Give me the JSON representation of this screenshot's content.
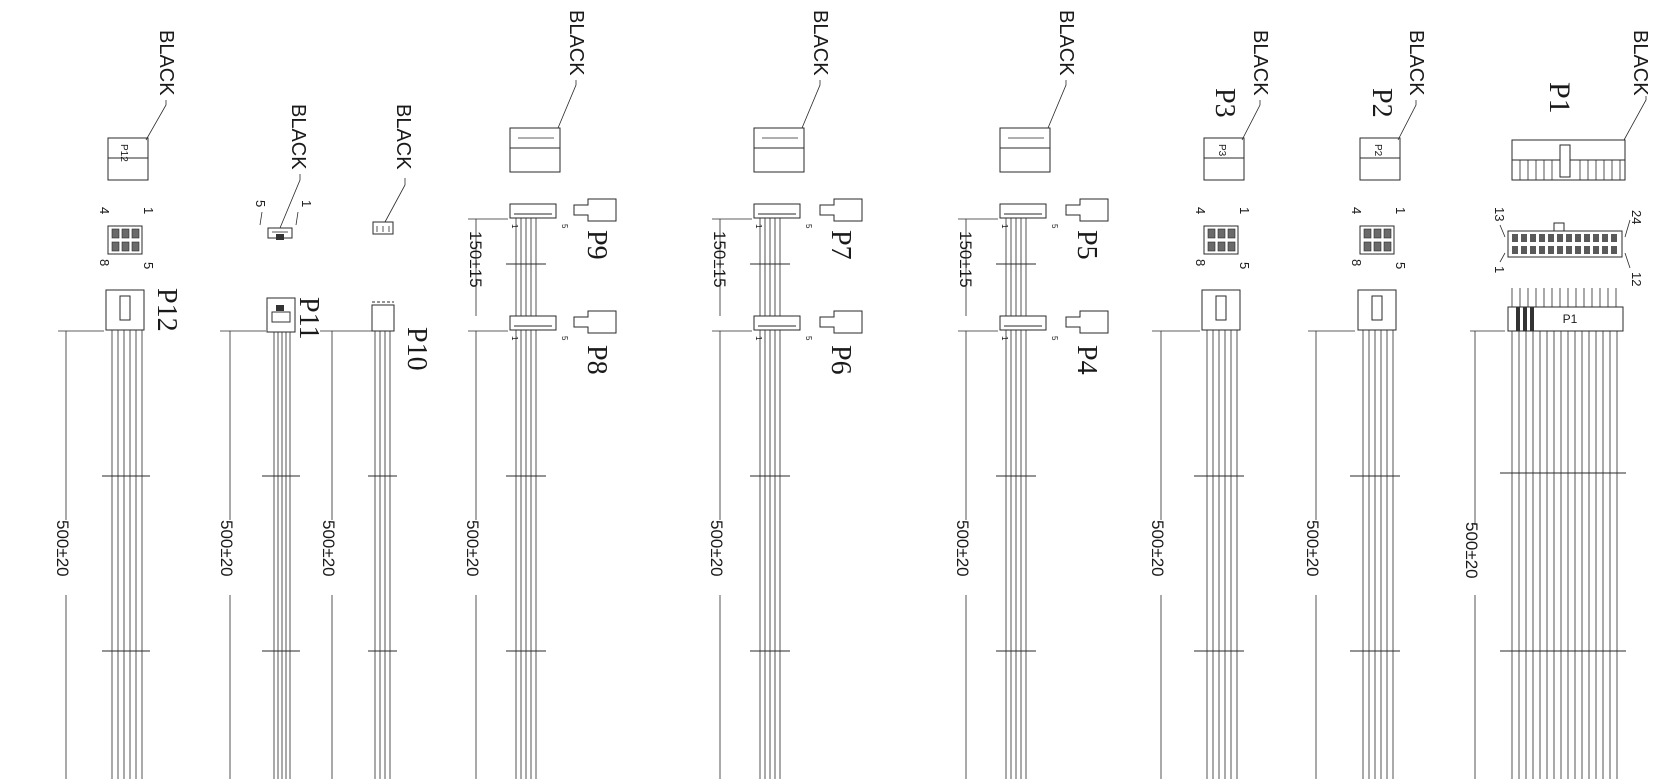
{
  "connectors": {
    "p1": {
      "label": "P1",
      "color": "BLACK",
      "pins": {
        "a": "24",
        "b": "13",
        "c": "1",
        "d": "12"
      },
      "body_label": "P1",
      "length": "500±20"
    },
    "p2": {
      "label": "P2",
      "color": "BLACK",
      "pins": {
        "a": "4",
        "b": "1",
        "c": "8",
        "d": "5"
      },
      "face_label": "P2",
      "length": "500±20"
    },
    "p3": {
      "label": "P3",
      "color": "BLACK",
      "pins": {
        "a": "4",
        "b": "1",
        "c": "8",
        "d": "5"
      },
      "face_label": "P3",
      "length": "500±20"
    },
    "p4p5": {
      "label_near": "P4",
      "label_far": "P5",
      "color": "BLACK",
      "pin_first": "1",
      "pin_last": "5",
      "spacing": "150±15",
      "length": "500±20"
    },
    "p6p7": {
      "label_near": "P6",
      "label_far": "P7",
      "color": "BLACK",
      "pin_first": "1",
      "pin_last": "5",
      "spacing": "150±15",
      "length": "500±20"
    },
    "p8p9": {
      "label_near": "P8",
      "label_far": "P9",
      "color": "BLACK",
      "pin_first": "1",
      "pin_last": "5",
      "spacing": "150±15",
      "length": "500±20"
    },
    "p10": {
      "label": "P10",
      "color": "BLACK",
      "length": "500±20"
    },
    "p11": {
      "label": "P11",
      "color": "BLACK",
      "pins": {
        "a": "5",
        "b": "1"
      },
      "length": "500±20"
    },
    "p12": {
      "label": "P12",
      "color": "BLACK",
      "pins": {
        "a": "4",
        "b": "1",
        "c": "8",
        "d": "5"
      },
      "face_label": "P12",
      "length": "500±20"
    }
  }
}
